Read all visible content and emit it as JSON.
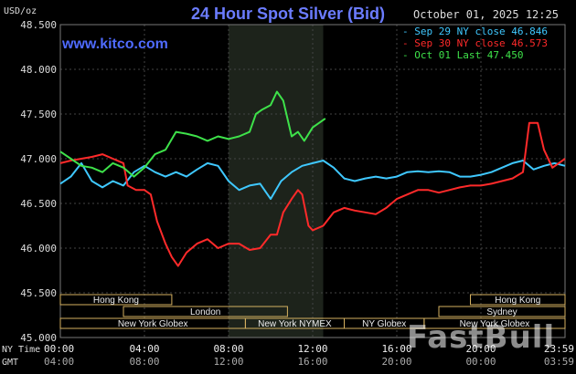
{
  "header": {
    "title": "24 Hour Spot Silver (Bid)",
    "site": "www.kitco.com",
    "timestamp": "October 01, 2025 12:25",
    "unit": "USD/oz"
  },
  "watermark": "FastBull",
  "chart_data": {
    "type": "line",
    "ylim": [
      45.0,
      48.5
    ],
    "xlim": [
      0,
      24
    ],
    "y_ticks": [
      "48.500",
      "48.000",
      "47.500",
      "47.000",
      "46.500",
      "46.000",
      "45.500",
      "45.000"
    ],
    "x_axis_rows": [
      {
        "label": "NY Time",
        "ticks": [
          "00:00",
          "04:00",
          "08:00",
          "12:00",
          "16:00",
          "20:00",
          "23:59"
        ]
      },
      {
        "label": "GMT",
        "ticks": [
          "04:00",
          "08:00",
          "12:00",
          "16:00",
          "20:00",
          "00:00",
          "03:59"
        ]
      }
    ],
    "series": [
      {
        "name": "Sep 29 NY close 46.846",
        "color": "#3fc8ff",
        "points": [
          [
            0,
            46.72
          ],
          [
            0.5,
            46.8
          ],
          [
            1,
            46.95
          ],
          [
            1.5,
            46.75
          ],
          [
            2,
            46.68
          ],
          [
            2.5,
            46.75
          ],
          [
            3,
            46.7
          ],
          [
            3.5,
            46.85
          ],
          [
            4,
            46.92
          ],
          [
            4.5,
            46.85
          ],
          [
            5,
            46.8
          ],
          [
            5.5,
            46.85
          ],
          [
            6,
            46.8
          ],
          [
            6.5,
            46.88
          ],
          [
            7,
            46.95
          ],
          [
            7.5,
            46.92
          ],
          [
            8,
            46.75
          ],
          [
            8.5,
            46.65
          ],
          [
            9,
            46.7
          ],
          [
            9.5,
            46.72
          ],
          [
            10,
            46.55
          ],
          [
            10.5,
            46.75
          ],
          [
            11,
            46.85
          ],
          [
            11.5,
            46.92
          ],
          [
            12,
            46.95
          ],
          [
            12.5,
            46.98
          ],
          [
            13,
            46.9
          ],
          [
            13.5,
            46.78
          ],
          [
            14,
            46.75
          ],
          [
            14.5,
            46.78
          ],
          [
            15,
            46.8
          ],
          [
            15.5,
            46.78
          ],
          [
            16,
            46.8
          ],
          [
            16.5,
            46.85
          ],
          [
            17,
            46.86
          ],
          [
            17.5,
            46.85
          ],
          [
            18,
            46.86
          ],
          [
            18.5,
            46.85
          ],
          [
            19,
            46.8
          ],
          [
            19.5,
            46.8
          ],
          [
            20,
            46.82
          ],
          [
            20.5,
            46.85
          ],
          [
            21,
            46.9
          ],
          [
            21.5,
            46.95
          ],
          [
            22,
            46.98
          ],
          [
            22.5,
            46.88
          ],
          [
            23,
            46.92
          ],
          [
            23.5,
            46.95
          ],
          [
            24,
            46.92
          ]
        ]
      },
      {
        "name": "Sep 30 NY close 46.573",
        "color": "#ff2a2a",
        "points": [
          [
            0,
            46.95
          ],
          [
            0.5,
            46.98
          ],
          [
            1,
            47.0
          ],
          [
            1.5,
            47.02
          ],
          [
            2,
            47.05
          ],
          [
            2.5,
            47.0
          ],
          [
            3,
            46.95
          ],
          [
            3.2,
            46.7
          ],
          [
            3.6,
            46.65
          ],
          [
            4,
            46.65
          ],
          [
            4.3,
            46.6
          ],
          [
            4.6,
            46.3
          ],
          [
            5,
            46.05
          ],
          [
            5.3,
            45.9
          ],
          [
            5.6,
            45.8
          ],
          [
            6,
            45.95
          ],
          [
            6.5,
            46.05
          ],
          [
            7,
            46.1
          ],
          [
            7.5,
            46.0
          ],
          [
            8,
            46.05
          ],
          [
            8.5,
            46.05
          ],
          [
            9,
            45.98
          ],
          [
            9.5,
            46.0
          ],
          [
            10,
            46.15
          ],
          [
            10.3,
            46.15
          ],
          [
            10.6,
            46.4
          ],
          [
            11,
            46.55
          ],
          [
            11.3,
            46.65
          ],
          [
            11.5,
            46.6
          ],
          [
            11.8,
            46.25
          ],
          [
            12,
            46.2
          ],
          [
            12.5,
            46.25
          ],
          [
            13,
            46.4
          ],
          [
            13.5,
            46.45
          ],
          [
            14,
            46.42
          ],
          [
            14.5,
            46.4
          ],
          [
            15,
            46.38
          ],
          [
            15.5,
            46.45
          ],
          [
            16,
            46.55
          ],
          [
            16.5,
            46.6
          ],
          [
            17,
            46.65
          ],
          [
            17.5,
            46.65
          ],
          [
            18,
            46.62
          ],
          [
            18.5,
            46.65
          ],
          [
            19,
            46.68
          ],
          [
            19.5,
            46.7
          ],
          [
            20,
            46.7
          ],
          [
            20.5,
            46.72
          ],
          [
            21,
            46.75
          ],
          [
            21.5,
            46.78
          ],
          [
            22,
            46.85
          ],
          [
            22.3,
            47.4
          ],
          [
            22.7,
            47.4
          ],
          [
            23,
            47.1
          ],
          [
            23.4,
            46.9
          ],
          [
            23.7,
            46.95
          ],
          [
            24,
            47.0
          ]
        ]
      },
      {
        "name": "Oct 01 Last 47.450",
        "color": "#3ee24a",
        "points": [
          [
            0,
            47.08
          ],
          [
            0.5,
            47.0
          ],
          [
            1,
            46.92
          ],
          [
            1.5,
            46.9
          ],
          [
            2,
            46.85
          ],
          [
            2.5,
            46.95
          ],
          [
            3,
            46.9
          ],
          [
            3.5,
            46.8
          ],
          [
            4,
            46.9
          ],
          [
            4.5,
            47.05
          ],
          [
            5,
            47.1
          ],
          [
            5.5,
            47.3
          ],
          [
            6,
            47.28
          ],
          [
            6.5,
            47.25
          ],
          [
            7,
            47.2
          ],
          [
            7.5,
            47.25
          ],
          [
            8,
            47.22
          ],
          [
            8.5,
            47.25
          ],
          [
            9,
            47.3
          ],
          [
            9.3,
            47.5
          ],
          [
            9.6,
            47.55
          ],
          [
            10,
            47.6
          ],
          [
            10.3,
            47.75
          ],
          [
            10.6,
            47.65
          ],
          [
            11,
            47.25
          ],
          [
            11.3,
            47.3
          ],
          [
            11.6,
            47.2
          ],
          [
            12,
            47.35
          ],
          [
            12.3,
            47.4
          ],
          [
            12.6,
            47.45
          ]
        ]
      }
    ],
    "highlight_range": [
      8,
      12.5
    ],
    "sessions": [
      {
        "label": "Hong Kong",
        "row": 0,
        "start": 0,
        "end": 5.3
      },
      {
        "label": "Hong Kong",
        "row": 0,
        "start": 19.5,
        "end": 24
      },
      {
        "label": "London",
        "row": 1,
        "start": 3,
        "end": 10.8
      },
      {
        "label": "Sydney",
        "row": 1,
        "start": 18,
        "end": 24
      },
      {
        "label": "New York Globex",
        "row": 2,
        "start": 0,
        "end": 8.8
      },
      {
        "label": "New York NYMEX",
        "row": 2,
        "start": 8.8,
        "end": 13.5
      },
      {
        "label": "NY Globex",
        "row": 2,
        "start": 13.5,
        "end": 17.3
      },
      {
        "label": "New York Globex",
        "row": 2,
        "start": 17.3,
        "end": 24
      }
    ],
    "grid": true,
    "legend_position": "top-right"
  }
}
